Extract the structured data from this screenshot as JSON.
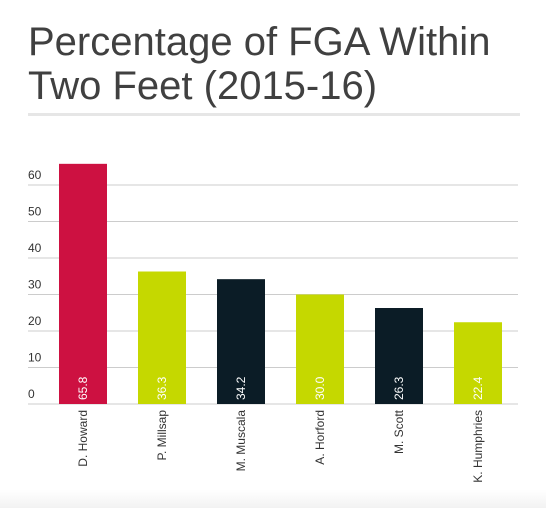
{
  "title_line1": "Percentage of FGA Within",
  "title_line2": "Two Feet (2015-16)",
  "colors": {
    "title": "#404040",
    "highlight": "#cd1141",
    "green": "#c5d800",
    "dark": "#0b1c26",
    "grid": "#cccccc",
    "axis_text": "#333333",
    "bar_label": "#ffffff"
  },
  "chart_data": {
    "type": "bar",
    "title": "Percentage of FGA Within Two Feet (2015-16)",
    "categories": [
      "D. Howard",
      "P. Millsap",
      "M. Muscala",
      "A. Horford",
      "M. Scott",
      "K. Humphries"
    ],
    "values": [
      65.8,
      36.3,
      34.2,
      30.0,
      26.3,
      22.4
    ],
    "value_labels": [
      "65.8",
      "36.3",
      "34.2",
      "30.0",
      "26.3",
      "22.4"
    ],
    "bar_colors": [
      "#cd1141",
      "#c5d800",
      "#0b1c26",
      "#c5d800",
      "#0b1c26",
      "#c5d800"
    ],
    "ylim": [
      0,
      70
    ],
    "yticks": [
      0,
      10,
      20,
      30,
      40,
      50,
      60
    ],
    "ytick_labels": [
      "0",
      "10",
      "20",
      "30",
      "40",
      "50",
      "60"
    ],
    "grid": true,
    "xlabel": "",
    "ylabel": ""
  }
}
